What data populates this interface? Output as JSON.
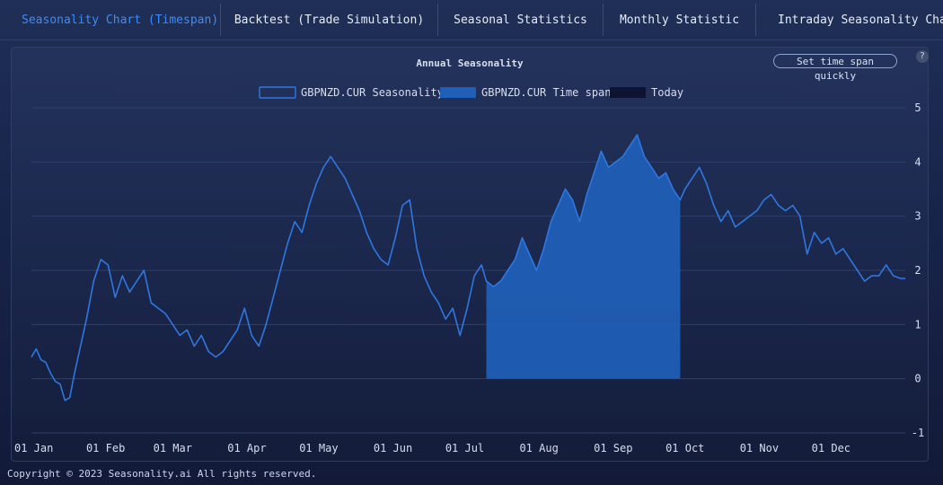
{
  "tabs": [
    {
      "label": "Seasonality Chart (Timespan)",
      "active": true
    },
    {
      "label": "Backtest (Trade Simulation)"
    },
    {
      "label": "Seasonal Statistics"
    },
    {
      "label": "Monthly Statistic"
    },
    {
      "label": "Intraday Seasonality Chart"
    }
  ],
  "quick_button": "Set time span quickly",
  "help_label": "?",
  "footer": "Copyright © 2023 Seasonality.ai All rights reserved.",
  "colors": {
    "line": "#2f77e0",
    "area": "#1f5fb8",
    "today": "#0d1330",
    "grid": "#2f3f6a",
    "text": "#d7def0"
  },
  "chart_data": {
    "type": "area",
    "title": "Annual Seasonality",
    "legend": [
      {
        "name": "GBPNZD.CUR Seasonality",
        "style": "outline"
      },
      {
        "name": "GBPNZD.CUR Time span",
        "style": "fill"
      },
      {
        "name": "Today",
        "style": "dark"
      }
    ],
    "legend_position": "top-center",
    "x_ticks": [
      "01 Jan",
      "01 Feb",
      "01 Mar",
      "01 Apr",
      "01 May",
      "01 Jun",
      "01 Jul",
      "01 Aug",
      "01 Sep",
      "01 Oct",
      "01 Nov",
      "01 Dec"
    ],
    "x_tick_days": [
      1,
      32,
      60,
      91,
      121,
      152,
      182,
      213,
      244,
      274,
      305,
      335
    ],
    "y_ticks": [
      5,
      4,
      3,
      2,
      1,
      0,
      -1
    ],
    "ylim": [
      -1,
      5
    ],
    "xlim": [
      1,
      366
    ],
    "grid": true,
    "timespan": [
      "2023-07-10",
      "2023-09-30"
    ],
    "timespan_days": [
      191,
      273
    ],
    "series": [
      {
        "name": "GBPNZD.CUR Seasonality",
        "x": [
          1,
          3,
          5,
          7,
          9,
          11,
          13,
          15,
          17,
          19,
          21,
          24,
          27,
          30,
          33,
          36,
          39,
          42,
          45,
          48,
          51,
          54,
          57,
          60,
          63,
          66,
          69,
          72,
          75,
          78,
          81,
          84,
          87,
          90,
          93,
          96,
          99,
          102,
          105,
          108,
          111,
          114,
          117,
          120,
          123,
          126,
          129,
          132,
          135,
          138,
          141,
          144,
          147,
          150,
          153,
          156,
          159,
          162,
          165,
          168,
          171,
          174,
          177,
          180,
          183,
          186,
          189,
          191,
          194,
          197,
          200,
          203,
          206,
          209,
          212,
          215,
          218,
          221,
          224,
          227,
          230,
          233,
          236,
          239,
          242,
          245,
          248,
          251,
          254,
          257,
          260,
          263,
          266,
          269,
          272,
          274,
          277,
          280,
          283,
          286,
          289,
          292,
          295,
          298,
          301,
          304,
          307,
          310,
          313,
          316,
          319,
          322,
          325,
          328,
          331,
          334,
          337,
          340,
          343,
          346,
          349,
          352,
          355,
          358,
          361,
          364,
          366
        ],
        "y": [
          0.4,
          0.55,
          0.35,
          0.3,
          0.1,
          -0.05,
          -0.1,
          -0.4,
          -0.35,
          0.1,
          0.5,
          1.1,
          1.8,
          2.2,
          2.1,
          1.5,
          1.9,
          1.6,
          1.8,
          2.0,
          1.4,
          1.3,
          1.2,
          1.0,
          0.8,
          0.9,
          0.6,
          0.8,
          0.5,
          0.4,
          0.5,
          0.7,
          0.9,
          1.3,
          0.8,
          0.6,
          1.0,
          1.5,
          2.0,
          2.5,
          2.9,
          2.7,
          3.2,
          3.6,
          3.9,
          4.1,
          3.9,
          3.7,
          3.4,
          3.1,
          2.7,
          2.4,
          2.2,
          2.1,
          2.6,
          3.2,
          3.3,
          2.4,
          1.9,
          1.6,
          1.4,
          1.1,
          1.3,
          0.8,
          1.3,
          1.9,
          2.1,
          1.8,
          1.7,
          1.8,
          2.0,
          2.2,
          2.6,
          2.3,
          2.0,
          2.4,
          2.9,
          3.2,
          3.5,
          3.3,
          2.9,
          3.4,
          3.8,
          4.2,
          3.9,
          4.0,
          4.1,
          4.3,
          4.5,
          4.1,
          3.9,
          3.7,
          3.8,
          3.5,
          3.3,
          3.5,
          3.7,
          3.9,
          3.6,
          3.2,
          2.9,
          3.1,
          2.8,
          2.9,
          3.0,
          3.1,
          3.3,
          3.4,
          3.2,
          3.1,
          3.2,
          3.0,
          2.3,
          2.7,
          2.5,
          2.6,
          2.3,
          2.4,
          2.2,
          2.0,
          1.8,
          1.9,
          1.9,
          2.1,
          1.9,
          1.85,
          1.85
        ]
      }
    ]
  }
}
